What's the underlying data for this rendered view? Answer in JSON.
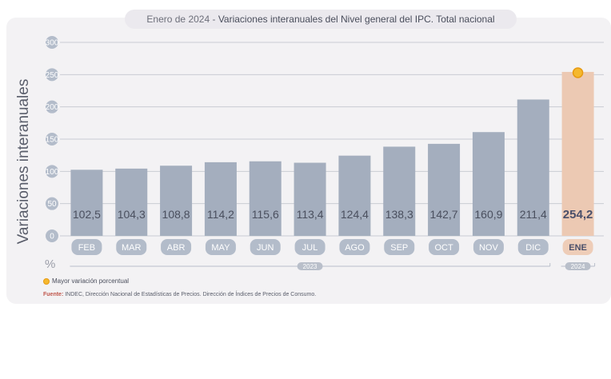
{
  "title": {
    "prefix": "Enero de 2024 - ",
    "main": "Variaciones interanuales del Nivel general del IPC. Total nacional"
  },
  "chart_data": {
    "type": "bar",
    "categories": [
      "FEB",
      "MAR",
      "ABR",
      "MAY",
      "JUN",
      "JUL",
      "AGO",
      "SEP",
      "OCT",
      "NOV",
      "DIC",
      "ENE"
    ],
    "values": [
      102.5,
      104.3,
      108.8,
      114.2,
      115.6,
      113.4,
      124.4,
      138.3,
      142.7,
      160.9,
      211.4,
      254.2
    ],
    "value_labels": [
      "102,5",
      "104,3",
      "108,8",
      "114,2",
      "115,6",
      "113,4",
      "124,4",
      "138,3",
      "142,7",
      "160,9",
      "211,4",
      "254,2"
    ],
    "ylabel": "Variaciones interanuales",
    "unit": "%",
    "yticks": [
      0,
      50,
      100,
      150,
      200,
      250,
      300
    ],
    "ylim": [
      0,
      300
    ],
    "grid": true,
    "highlight_index": 11,
    "year_groups": [
      {
        "label": "2023",
        "from": 0,
        "to": 10
      },
      {
        "label": "2024",
        "from": 11,
        "to": 11
      }
    ]
  },
  "legend": {
    "label": "Mayor variación porcentual"
  },
  "source": {
    "label": "Fuente:",
    "text": " INDEC, Dirección Nacional de Estadísticas de Precios. Dirección de Índices de Precios de Consumo."
  },
  "colors": {
    "bar": "#a4aebe",
    "highlight_bar": "#ecc9b3",
    "category_pill": "#b3bcca",
    "highlight_pill": "#eecdb8",
    "grid": "#c9ccd3",
    "marker": "#f5b82e"
  }
}
